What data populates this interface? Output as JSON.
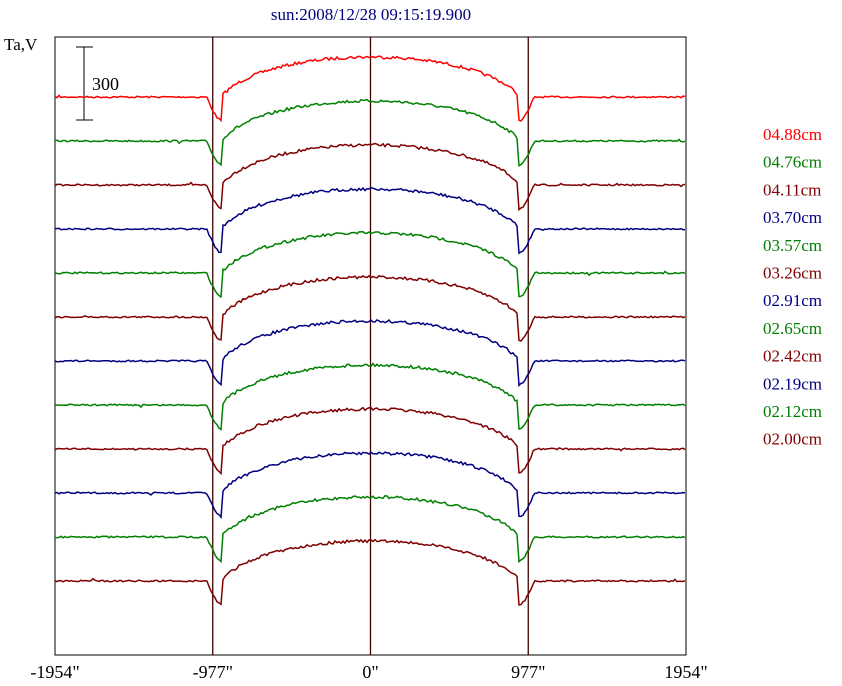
{
  "chart_data": {
    "type": "line",
    "title": "sun:2008/12/28 09:15:19.900",
    "ylabel": "Ta,V",
    "scale_bar_label": "300",
    "scale_bar_value": 300,
    "x_ticks": [
      {
        "value": -1954,
        "label": "-1954\""
      },
      {
        "value": -977,
        "label": "-977\""
      },
      {
        "value": 0,
        "label": "0\""
      },
      {
        "value": 977,
        "label": "977\""
      },
      {
        "value": 1954,
        "label": "1954\""
      }
    ],
    "xlim": [
      -1954,
      1954
    ],
    "vertical_markers": [
      -977,
      0,
      977
    ],
    "colors": {
      "red": "#ff0000",
      "green": "#008000",
      "maroon": "#800000",
      "navy": "#000080",
      "frame": "#000000",
      "marker": "#400000"
    },
    "series": [
      {
        "name": "04.88cm",
        "color": "#ff0000"
      },
      {
        "name": "04.76cm",
        "color": "#008000"
      },
      {
        "name": "04.11cm",
        "color": "#800000"
      },
      {
        "name": "03.70cm",
        "color": "#000080"
      },
      {
        "name": "03.57cm",
        "color": "#008000"
      },
      {
        "name": "03.26cm",
        "color": "#800000"
      },
      {
        "name": "02.91cm",
        "color": "#000080"
      },
      {
        "name": "02.65cm",
        "color": "#008000"
      },
      {
        "name": "02.42cm",
        "color": "#800000"
      },
      {
        "name": "02.19cm",
        "color": "#000080"
      },
      {
        "name": "02.12cm",
        "color": "#008000"
      },
      {
        "name": "02.00cm",
        "color": "#800000"
      }
    ],
    "grid": false,
    "legend_position": "right"
  }
}
